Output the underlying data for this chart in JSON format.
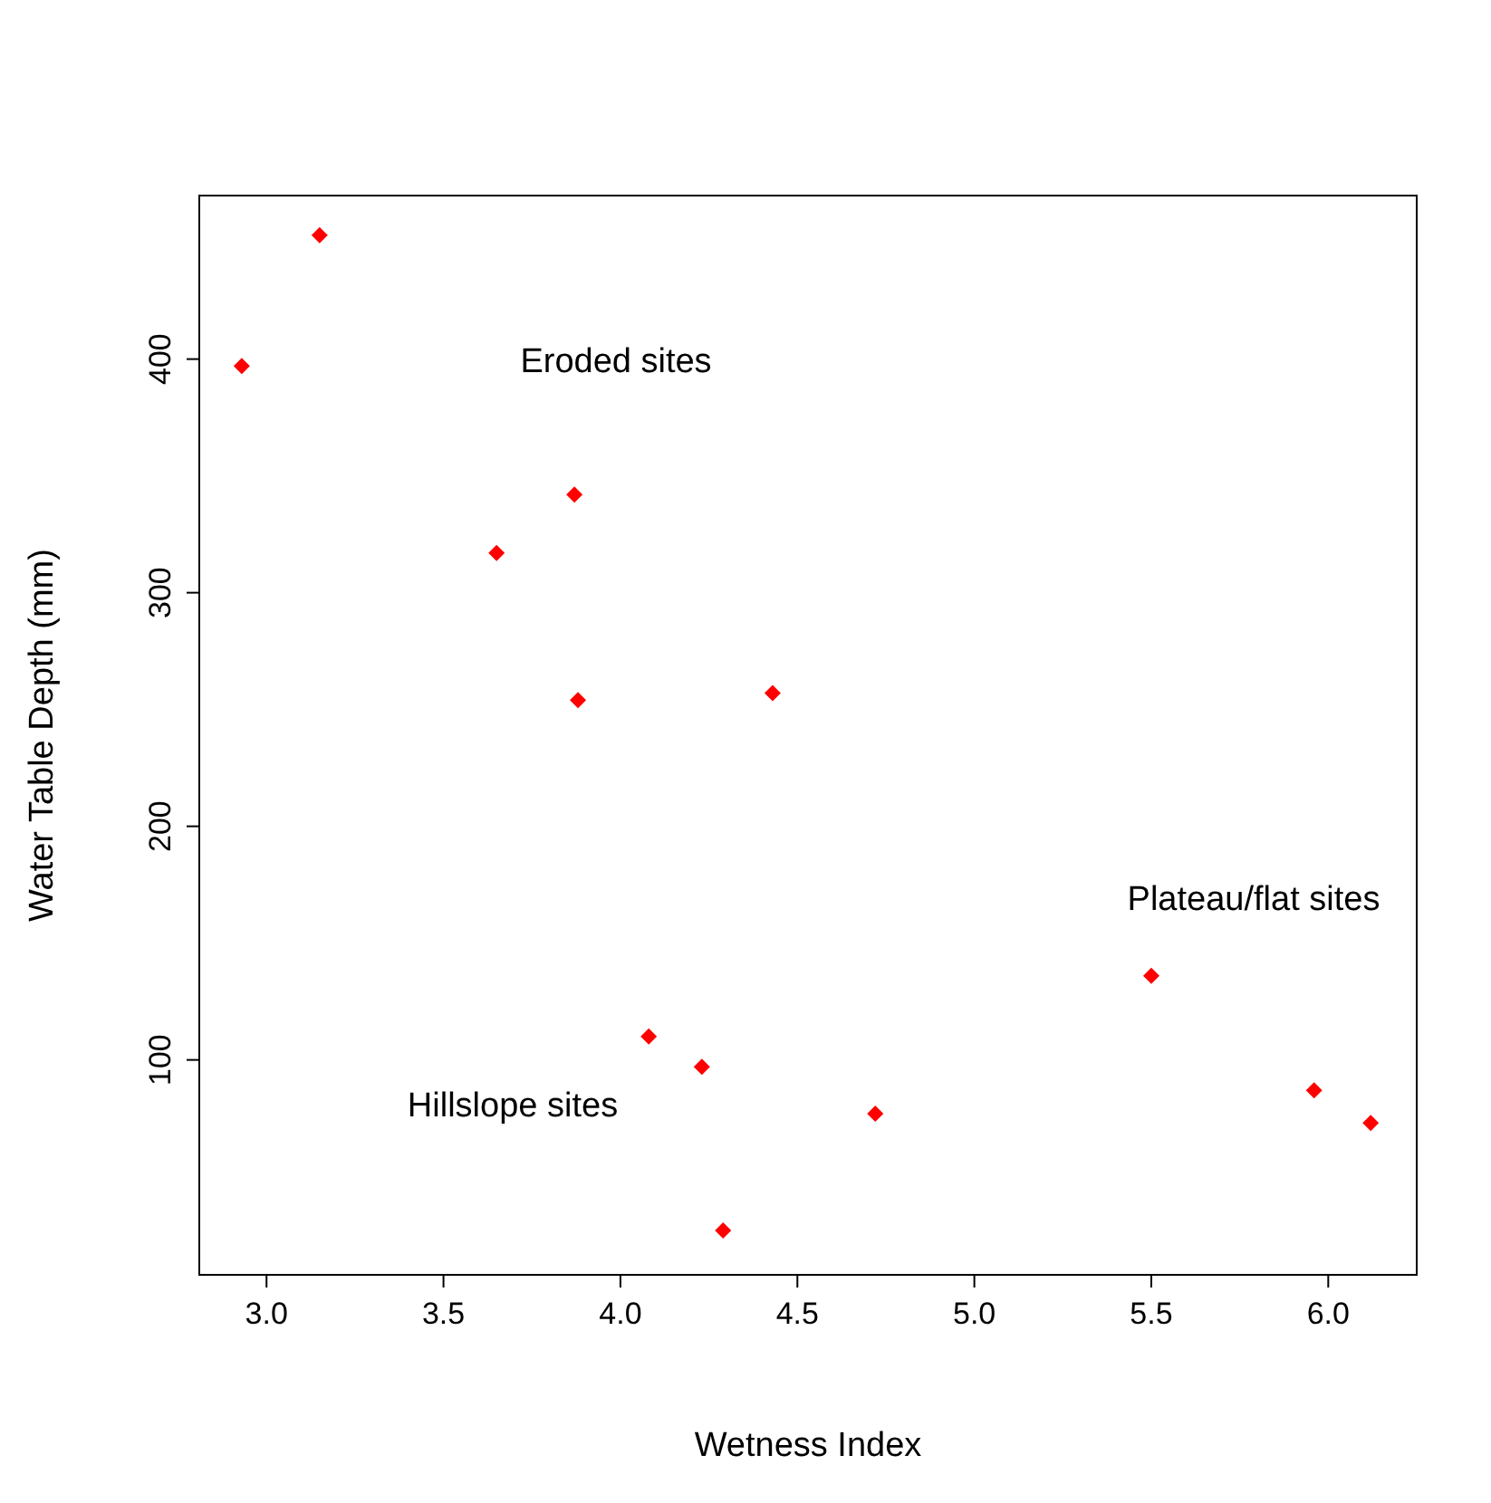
{
  "chart_data": {
    "type": "scatter",
    "xlabel": "Wetness Index",
    "ylabel": "Water Table Depth (mm)",
    "x": [
      2.93,
      3.15,
      3.65,
      3.87,
      3.88,
      4.43,
      4.08,
      4.23,
      4.29,
      4.72,
      5.5,
      5.96,
      6.12
    ],
    "series": [
      {
        "color": "#ff0000",
        "values": [
          397,
          453,
          317,
          342,
          254,
          257,
          110,
          97,
          27,
          77,
          136,
          87,
          73
        ]
      }
    ],
    "xlim": [
      2.81,
      6.25
    ],
    "ylim": [
      8,
      470
    ],
    "xticks": [
      {
        "value": 3,
        "label": "3.0"
      },
      {
        "value": 3.5,
        "label": "3.5"
      },
      {
        "value": 4,
        "label": "4.0"
      },
      {
        "value": 4.5,
        "label": "4.5"
      },
      {
        "value": 5,
        "label": "5.0"
      },
      {
        "value": 5.5,
        "label": "5.5"
      },
      {
        "value": 6,
        "label": "6.0"
      }
    ],
    "yticks": [
      100,
      200,
      300,
      400
    ],
    "marker": "diamond",
    "annotations": [
      "Eroded sites",
      "Plateau/flat sites",
      "Hillslope sites"
    ]
  }
}
